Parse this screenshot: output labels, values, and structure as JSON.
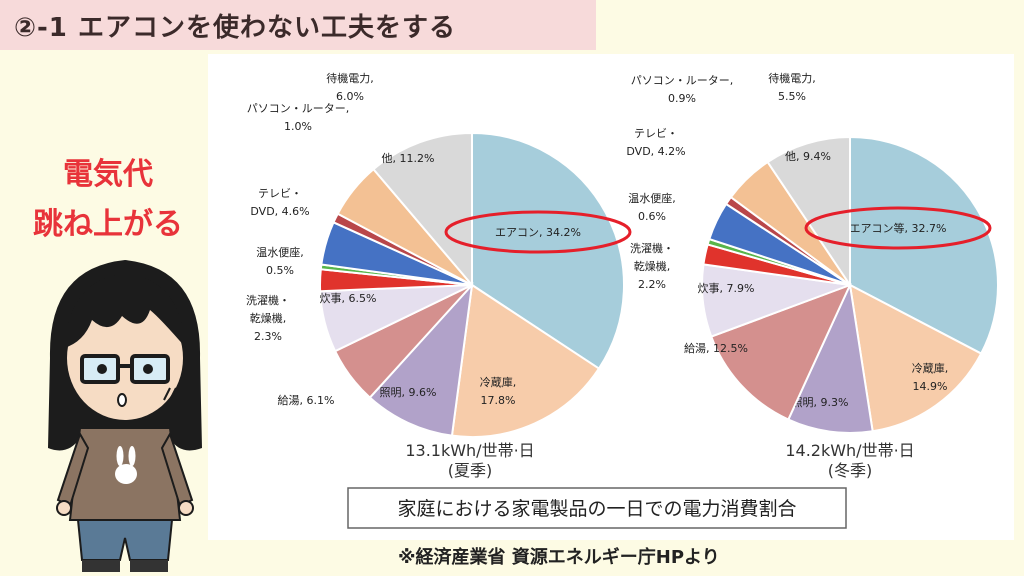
{
  "banner": {
    "title": "②-1 エアコンを使わない工夫をする"
  },
  "side_text": {
    "line1": "電気代",
    "line2": "跳ね上がる"
  },
  "figure": {
    "caption": "家庭における家電製品の一日での電力消費割合"
  },
  "credit": "※経済産業省 資源エネルギー庁HPより",
  "colors": {
    "aircon": "#a6cddb",
    "fridge": "#f7ccaa",
    "lighting": "#b1a2c9",
    "water_heater": "#d4908e",
    "cooking": "#e5dfee",
    "laundry": "#e0332c",
    "toilet": "#58b54a",
    "tv": "#4572c4",
    "pc": "#b9474a",
    "standby": "#f3c194",
    "other": "#d9d9d9",
    "highlight_ring": "#e51f2a"
  },
  "chart_data": [
    {
      "type": "pie",
      "caption_line1": "13.1kWh/世帯·日",
      "caption_line2": "(夏季)",
      "slices": [
        {
          "key": "aircon",
          "label": "エアコン, 34.2%",
          "value": 34.2
        },
        {
          "key": "fridge",
          "label": "冷蔵庫,\n17.8%",
          "value": 17.8
        },
        {
          "key": "lighting",
          "label": "照明, 9.6%",
          "value": 9.6
        },
        {
          "key": "water_heater",
          "label": "給湯, 6.1%",
          "value": 6.1
        },
        {
          "key": "cooking",
          "label": "炊事, 6.5%",
          "value": 6.5
        },
        {
          "key": "laundry",
          "label": "洗濯機・\n乾燥機,\n2.3%",
          "value": 2.3
        },
        {
          "key": "toilet",
          "label": "温水便座,\n0.5%",
          "value": 0.5
        },
        {
          "key": "tv",
          "label": "テレビ・\nDVD, 4.6%",
          "value": 4.6
        },
        {
          "key": "pc",
          "label": "パソコン・ルーター,\n1.0%",
          "value": 1.0
        },
        {
          "key": "standby",
          "label": "待機電力,\n6.0%",
          "value": 6.0
        },
        {
          "key": "other",
          "label": "他, 11.2%",
          "value": 11.2
        }
      ]
    },
    {
      "type": "pie",
      "caption_line1": "14.2kWh/世帯·日",
      "caption_line2": "(冬季)",
      "slices": [
        {
          "key": "aircon",
          "label": "エアコン等, 32.7%",
          "value": 32.7
        },
        {
          "key": "fridge",
          "label": "冷蔵庫,\n14.9%",
          "value": 14.9
        },
        {
          "key": "lighting",
          "label": "照明, 9.3%",
          "value": 9.3
        },
        {
          "key": "water_heater",
          "label": "給湯, 12.5%",
          "value": 12.5
        },
        {
          "key": "cooking",
          "label": "炊事, 7.9%",
          "value": 7.9
        },
        {
          "key": "laundry",
          "label": "洗濯機・\n乾燥機,\n2.2%",
          "value": 2.2
        },
        {
          "key": "toilet",
          "label": "温水便座,\n0.6%",
          "value": 0.6
        },
        {
          "key": "tv",
          "label": "テレビ・\nDVD, 4.2%",
          "value": 4.2
        },
        {
          "key": "pc",
          "label": "パソコン・ルーター,\n0.9%",
          "value": 0.9
        },
        {
          "key": "standby",
          "label": "待機電力,\n5.5%",
          "value": 5.5
        },
        {
          "key": "other",
          "label": "他, 9.4%",
          "value": 9.4
        }
      ]
    }
  ]
}
